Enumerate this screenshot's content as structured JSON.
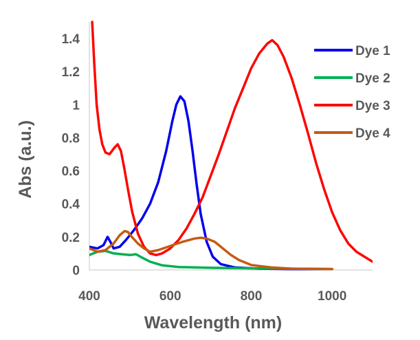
{
  "chart_data": {
    "type": "line",
    "xlabel": "Wavelength (nm)",
    "ylabel": "Abs (a.u.)",
    "xlim": [
      400,
      1100
    ],
    "ylim": [
      0,
      1.5
    ],
    "xticks": [
      "400",
      "600",
      "800",
      "1000"
    ],
    "xtick_values": [
      400,
      600,
      800,
      1000
    ],
    "yticks": [
      "0",
      "0.2",
      "0.4",
      "0.6",
      "0.8",
      "1",
      "1.2",
      "1.4"
    ],
    "ytick_values": [
      0,
      0.2,
      0.4,
      0.6,
      0.8,
      1.0,
      1.2,
      1.4
    ],
    "grid": false,
    "legend_position": "top-right",
    "series": [
      {
        "name": "Dye 1",
        "color": "#0000ee",
        "points": [
          [
            400,
            0.14
          ],
          [
            420,
            0.13
          ],
          [
            435,
            0.15
          ],
          [
            445,
            0.2
          ],
          [
            452,
            0.17
          ],
          [
            460,
            0.13
          ],
          [
            475,
            0.14
          ],
          [
            490,
            0.18
          ],
          [
            510,
            0.24
          ],
          [
            530,
            0.31
          ],
          [
            550,
            0.4
          ],
          [
            570,
            0.53
          ],
          [
            590,
            0.72
          ],
          [
            605,
            0.9
          ],
          [
            615,
            1.0
          ],
          [
            625,
            1.05
          ],
          [
            635,
            1.02
          ],
          [
            645,
            0.9
          ],
          [
            655,
            0.72
          ],
          [
            665,
            0.52
          ],
          [
            675,
            0.34
          ],
          [
            690,
            0.17
          ],
          [
            705,
            0.08
          ],
          [
            725,
            0.035
          ],
          [
            760,
            0.015
          ],
          [
            820,
            0.008
          ],
          [
            900,
            0.005
          ],
          [
            1000,
            0.005
          ]
        ]
      },
      {
        "name": "Dye 2",
        "color": "#00b050",
        "points": [
          [
            400,
            0.09
          ],
          [
            420,
            0.11
          ],
          [
            440,
            0.115
          ],
          [
            460,
            0.1
          ],
          [
            480,
            0.095
          ],
          [
            500,
            0.09
          ],
          [
            515,
            0.095
          ],
          [
            530,
            0.075
          ],
          [
            550,
            0.05
          ],
          [
            580,
            0.028
          ],
          [
            620,
            0.018
          ],
          [
            700,
            0.013
          ],
          [
            800,
            0.01
          ],
          [
            900,
            0.008
          ],
          [
            1000,
            0.006
          ]
        ]
      },
      {
        "name": "Dye 3",
        "color": "#ff0000",
        "points": [
          [
            407,
            1.5
          ],
          [
            412,
            1.25
          ],
          [
            418,
            1.0
          ],
          [
            425,
            0.85
          ],
          [
            432,
            0.76
          ],
          [
            440,
            0.71
          ],
          [
            450,
            0.7
          ],
          [
            462,
            0.74
          ],
          [
            470,
            0.76
          ],
          [
            478,
            0.72
          ],
          [
            486,
            0.62
          ],
          [
            496,
            0.48
          ],
          [
            506,
            0.35
          ],
          [
            520,
            0.22
          ],
          [
            535,
            0.14
          ],
          [
            550,
            0.1
          ],
          [
            565,
            0.09
          ],
          [
            580,
            0.1
          ],
          [
            600,
            0.13
          ],
          [
            620,
            0.18
          ],
          [
            640,
            0.25
          ],
          [
            660,
            0.34
          ],
          [
            680,
            0.44
          ],
          [
            700,
            0.57
          ],
          [
            720,
            0.7
          ],
          [
            740,
            0.84
          ],
          [
            760,
            0.98
          ],
          [
            780,
            1.1
          ],
          [
            800,
            1.22
          ],
          [
            820,
            1.31
          ],
          [
            840,
            1.37
          ],
          [
            852,
            1.39
          ],
          [
            865,
            1.36
          ],
          [
            880,
            1.29
          ],
          [
            900,
            1.16
          ],
          [
            920,
            1.0
          ],
          [
            940,
            0.83
          ],
          [
            960,
            0.65
          ],
          [
            980,
            0.49
          ],
          [
            1000,
            0.35
          ],
          [
            1020,
            0.24
          ],
          [
            1040,
            0.16
          ],
          [
            1060,
            0.11
          ],
          [
            1080,
            0.08
          ],
          [
            1100,
            0.05
          ]
        ]
      },
      {
        "name": "Dye 4",
        "color": "#c55a11",
        "points": [
          [
            400,
            0.13
          ],
          [
            420,
            0.11
          ],
          [
            440,
            0.12
          ],
          [
            460,
            0.16
          ],
          [
            475,
            0.21
          ],
          [
            487,
            0.235
          ],
          [
            495,
            0.23
          ],
          [
            505,
            0.2
          ],
          [
            520,
            0.16
          ],
          [
            535,
            0.13
          ],
          [
            550,
            0.11
          ],
          [
            570,
            0.12
          ],
          [
            600,
            0.145
          ],
          [
            630,
            0.17
          ],
          [
            660,
            0.19
          ],
          [
            675,
            0.195
          ],
          [
            690,
            0.19
          ],
          [
            710,
            0.17
          ],
          [
            730,
            0.13
          ],
          [
            750,
            0.09
          ],
          [
            770,
            0.06
          ],
          [
            800,
            0.03
          ],
          [
            850,
            0.015
          ],
          [
            900,
            0.008
          ],
          [
            1000,
            0.005
          ]
        ]
      }
    ]
  }
}
